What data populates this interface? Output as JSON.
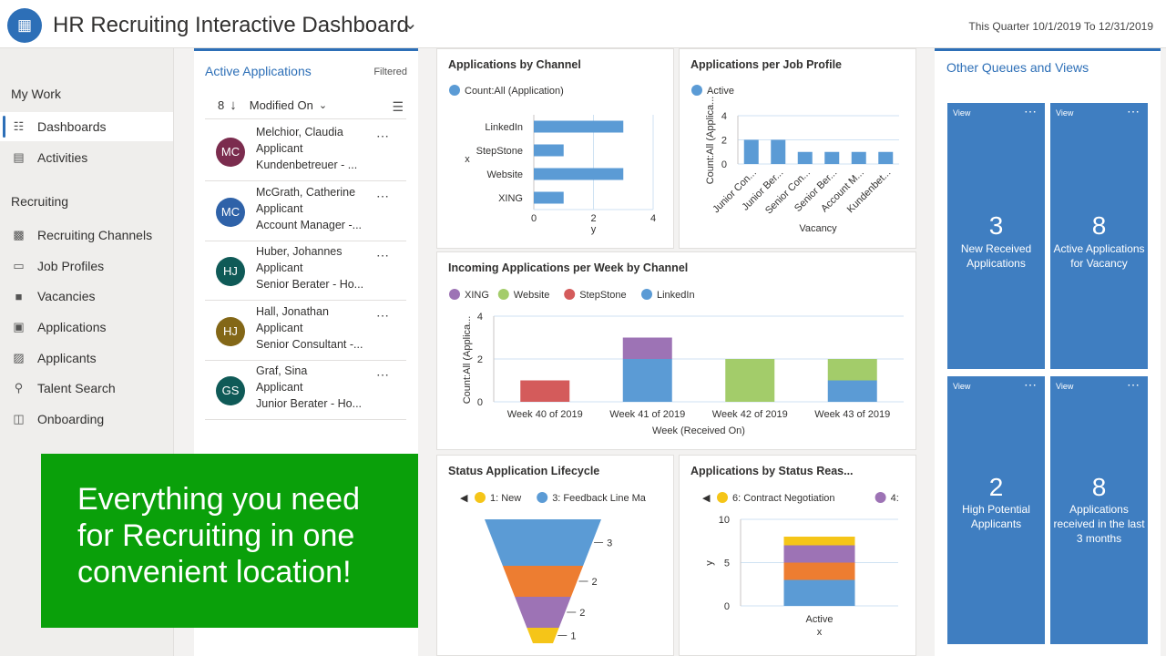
{
  "header": {
    "title": "HR Recruiting Interactive Dashboard",
    "period": "This Quarter 10/1/2019 To 12/31/2019"
  },
  "sidebar": {
    "sections": [
      {
        "title": "My Work",
        "items": [
          {
            "label": "Dashboards",
            "icon": "dashboard-icon",
            "active": true
          },
          {
            "label": "Activities",
            "icon": "clipboard-icon"
          }
        ]
      },
      {
        "title": "Recruiting",
        "items": [
          {
            "label": "Recruiting Channels",
            "icon": "channels-icon"
          },
          {
            "label": "Job Profiles",
            "icon": "id-card-icon"
          },
          {
            "label": "Vacancies",
            "icon": "document-icon"
          },
          {
            "label": "Applications",
            "icon": "application-icon"
          },
          {
            "label": "Applicants",
            "icon": "contact-card-icon"
          },
          {
            "label": "Talent Search",
            "icon": "people-search-icon"
          },
          {
            "label": "Onboarding",
            "icon": "onboarding-icon"
          }
        ]
      }
    ]
  },
  "applications_panel": {
    "title": "Active Applications",
    "filtered": "Filtered",
    "count": "8",
    "sort_by": "Modified On",
    "rows": [
      {
        "initials": "MC",
        "color": "#7b2c4e",
        "name": "Melchior, Claudia",
        "type": "Applicant",
        "role": "Kundenbetreuer - ..."
      },
      {
        "initials": "MC",
        "color": "#2f62a8",
        "name": "McGrath, Catherine",
        "type": "Applicant",
        "role": "Account Manager -..."
      },
      {
        "initials": "HJ",
        "color": "#0f5a57",
        "name": "Huber, Johannes",
        "type": "Applicant",
        "role": "Senior Berater - Ho..."
      },
      {
        "initials": "HJ",
        "color": "#836717",
        "name": "Hall, Jonathan",
        "type": "Applicant",
        "role": "Senior Consultant -..."
      },
      {
        "initials": "GS",
        "color": "#0f5a57",
        "name": "Graf, Sina",
        "type": "Applicant",
        "role": "Junior Berater - Ho..."
      }
    ]
  },
  "promo": {
    "text": "Everything you need for Recruiting in one convenient location!"
  },
  "chart_data": [
    {
      "type": "bar",
      "title": "Applications by Channel",
      "legend": [
        "Count:All (Application)"
      ],
      "legend_colors": [
        "#5b9bd5"
      ],
      "categories": [
        "LinkedIn",
        "StepStone",
        "Website",
        "XING"
      ],
      "values": [
        3,
        1,
        3,
        1
      ],
      "orientation": "horizontal",
      "xlabel": "y",
      "ylabel": "x",
      "xlim": [
        0,
        4
      ],
      "ticks": [
        "0",
        "2",
        "4"
      ]
    },
    {
      "type": "bar",
      "title": "Applications per Job Profile",
      "legend": [
        "Active"
      ],
      "legend_colors": [
        "#5b9bd5"
      ],
      "categories": [
        "Junior Con...",
        "Junior Ber...",
        "Senior Con...",
        "Senior Ber...",
        "Account M...",
        "Kundenbet..."
      ],
      "values": [
        2,
        2,
        1,
        1,
        1,
        1
      ],
      "xlabel": "Vacancy",
      "ylabel": "Count:All (Applica...",
      "ylim": [
        0,
        4
      ],
      "ticks": [
        "0",
        "2",
        "4"
      ]
    },
    {
      "type": "bar",
      "stacked": true,
      "title": "Incoming Applications per Week by Channel",
      "categories": [
        "Week 40 of 2019",
        "Week 41 of 2019",
        "Week 42 of 2019",
        "Week 43 of 2019"
      ],
      "series": [
        {
          "name": "LinkedIn",
          "color": "#5b9bd5",
          "values": [
            0,
            2,
            0,
            1
          ]
        },
        {
          "name": "StepStone",
          "color": "#d45b5b",
          "values": [
            1,
            0,
            0,
            0
          ]
        },
        {
          "name": "Website",
          "color": "#a3cc6a",
          "values": [
            0,
            0,
            2,
            1
          ]
        },
        {
          "name": "XING",
          "color": "#9d73b5",
          "values": [
            0,
            1,
            0,
            0
          ]
        }
      ],
      "legend_order": [
        "XING",
        "Website",
        "StepStone",
        "LinkedIn"
      ],
      "xlabel": "Week (Received On)",
      "ylabel": "Count:All (Applica...",
      "ylim": [
        0,
        4
      ],
      "ticks": [
        "0",
        "2",
        "4"
      ]
    },
    {
      "type": "funnel",
      "title": "Status Application Lifecycle",
      "legend": [
        "1: New",
        "3: Feedback Line Ma"
      ],
      "legend_colors": [
        "#f5c518",
        "#5b9bd5"
      ],
      "stages": [
        {
          "value": 3,
          "color": "#5b9bd5"
        },
        {
          "value": 2,
          "color": "#ed7d31"
        },
        {
          "value": 2,
          "color": "#9d73b5"
        },
        {
          "value": 1,
          "color": "#f5c518"
        }
      ]
    },
    {
      "type": "bar",
      "stacked": true,
      "title": "Applications by Status Reas...",
      "legend": [
        "6: Contract Negotiation",
        "4:"
      ],
      "legend_colors": [
        "#f5c518",
        "#9d73b5"
      ],
      "categories": [
        "Active"
      ],
      "series": [
        {
          "color": "#5b9bd5",
          "values": [
            3
          ]
        },
        {
          "color": "#ed7d31",
          "values": [
            2
          ]
        },
        {
          "color": "#9d73b5",
          "values": [
            2
          ]
        },
        {
          "color": "#f5c518",
          "values": [
            1
          ]
        }
      ],
      "xlabel": "x",
      "ylabel": "y",
      "ylim": [
        0,
        10
      ],
      "ticks": [
        "0",
        "5",
        "10"
      ]
    }
  ],
  "queues": {
    "title": "Other Queues and Views",
    "tiles": [
      {
        "view": "View",
        "count": "3",
        "label": "New Received Applications"
      },
      {
        "view": "View",
        "count": "8",
        "label": "Active Applications for Vacancy"
      },
      {
        "view": "View",
        "count": "2",
        "label": "High Potential Applicants"
      },
      {
        "view": "View",
        "count": "8",
        "label": "Applications received in the last 3 months"
      }
    ]
  }
}
